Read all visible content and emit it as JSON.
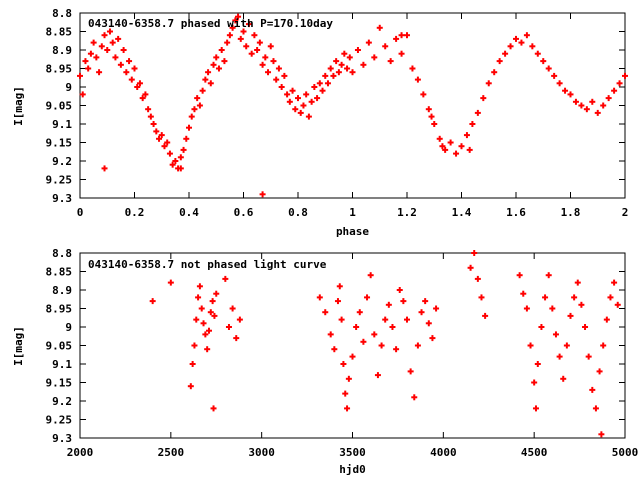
{
  "chart_data": [
    {
      "type": "scatter",
      "title": "043140-6358.7 phased with P=170.10day",
      "xlabel": "phase",
      "ylabel": "I[mag]",
      "xlim": [
        0,
        2
      ],
      "ylim": [
        8.8,
        9.3
      ],
      "y_inverted": true,
      "grid": false,
      "marker_color": "#ff0000",
      "marker_shape": "cross",
      "x_ticks": [
        "0",
        "0.2",
        "0.4",
        "0.6",
        "0.8",
        "1",
        "1.2",
        "1.4",
        "1.6",
        "1.8",
        "2"
      ],
      "y_ticks": [
        "8.8",
        "8.85",
        "8.9",
        "8.95",
        "9",
        "9.05",
        "9.1",
        "9.15",
        "9.2",
        "9.25",
        "9.3"
      ],
      "series": [
        {
          "points": [
            [
              0.0,
              8.97
            ],
            [
              0.01,
              9.02
            ],
            [
              0.02,
              8.93
            ],
            [
              0.03,
              8.95
            ],
            [
              0.04,
              8.91
            ],
            [
              0.05,
              8.88
            ],
            [
              0.06,
              8.92
            ],
            [
              0.07,
              8.96
            ],
            [
              0.08,
              8.89
            ],
            [
              0.09,
              8.86
            ],
            [
              0.1,
              8.9
            ],
            [
              0.11,
              8.85
            ],
            [
              0.12,
              8.88
            ],
            [
              0.13,
              8.92
            ],
            [
              0.14,
              8.87
            ],
            [
              0.15,
              8.94
            ],
            [
              0.16,
              8.9
            ],
            [
              0.17,
              8.96
            ],
            [
              0.18,
              8.93
            ],
            [
              0.19,
              8.98
            ],
            [
              0.2,
              8.95
            ],
            [
              0.21,
              9.0
            ],
            [
              0.22,
              8.99
            ],
            [
              0.23,
              9.03
            ],
            [
              0.24,
              9.02
            ],
            [
              0.25,
              9.06
            ],
            [
              0.26,
              9.08
            ],
            [
              0.27,
              9.1
            ],
            [
              0.28,
              9.12
            ],
            [
              0.29,
              9.14
            ],
            [
              0.3,
              9.13
            ],
            [
              0.31,
              9.16
            ],
            [
              0.32,
              9.15
            ],
            [
              0.33,
              9.18
            ],
            [
              0.34,
              9.21
            ],
            [
              0.35,
              9.2
            ],
            [
              0.36,
              9.22
            ],
            [
              0.37,
              9.19
            ],
            [
              0.38,
              9.17
            ],
            [
              0.39,
              9.14
            ],
            [
              0.4,
              9.11
            ],
            [
              0.41,
              9.08
            ],
            [
              0.42,
              9.06
            ],
            [
              0.43,
              9.03
            ],
            [
              0.44,
              9.05
            ],
            [
              0.45,
              9.01
            ],
            [
              0.46,
              8.98
            ],
            [
              0.47,
              8.96
            ],
            [
              0.48,
              8.99
            ],
            [
              0.49,
              8.94
            ],
            [
              0.5,
              8.92
            ],
            [
              0.51,
              8.95
            ],
            [
              0.52,
              8.9
            ],
            [
              0.53,
              8.93
            ],
            [
              0.54,
              8.88
            ],
            [
              0.55,
              8.86
            ],
            [
              0.56,
              8.84
            ],
            [
              0.57,
              8.82
            ],
            [
              0.58,
              8.81
            ],
            [
              0.59,
              8.87
            ],
            [
              0.6,
              8.85
            ],
            [
              0.61,
              8.89
            ],
            [
              0.62,
              8.83
            ],
            [
              0.63,
              8.91
            ],
            [
              0.64,
              8.86
            ],
            [
              0.65,
              8.9
            ],
            [
              0.66,
              8.88
            ],
            [
              0.67,
              8.94
            ],
            [
              0.68,
              8.92
            ],
            [
              0.69,
              8.96
            ],
            [
              0.7,
              8.89
            ],
            [
              0.71,
              8.93
            ],
            [
              0.72,
              8.98
            ],
            [
              0.73,
              8.95
            ],
            [
              0.74,
              9.0
            ],
            [
              0.75,
              8.97
            ],
            [
              0.76,
              9.02
            ],
            [
              0.77,
              9.04
            ],
            [
              0.78,
              9.01
            ],
            [
              0.79,
              9.06
            ],
            [
              0.8,
              9.03
            ],
            [
              0.81,
              9.07
            ],
            [
              0.82,
              9.05
            ],
            [
              0.83,
              9.02
            ],
            [
              0.84,
              9.08
            ],
            [
              0.85,
              9.04
            ],
            [
              0.86,
              9.0
            ],
            [
              0.87,
              9.03
            ],
            [
              0.88,
              8.99
            ],
            [
              0.89,
              9.01
            ],
            [
              0.9,
              8.97
            ],
            [
              0.91,
              8.99
            ],
            [
              0.92,
              8.95
            ],
            [
              0.93,
              8.97
            ],
            [
              0.94,
              8.93
            ],
            [
              0.95,
              8.96
            ],
            [
              0.96,
              8.94
            ],
            [
              0.97,
              8.91
            ],
            [
              0.98,
              8.95
            ],
            [
              0.99,
              8.92
            ],
            [
              1.0,
              8.96
            ],
            [
              1.02,
              8.9
            ],
            [
              1.04,
              8.94
            ],
            [
              1.06,
              8.88
            ],
            [
              1.08,
              8.92
            ],
            [
              1.1,
              8.84
            ],
            [
              1.12,
              8.89
            ],
            [
              1.14,
              8.93
            ],
            [
              1.16,
              8.87
            ],
            [
              1.18,
              8.91
            ],
            [
              1.2,
              8.86
            ],
            [
              1.22,
              8.95
            ],
            [
              1.24,
              8.98
            ],
            [
              1.26,
              9.02
            ],
            [
              1.28,
              9.06
            ],
            [
              1.3,
              9.1
            ],
            [
              1.32,
              9.14
            ],
            [
              1.34,
              9.17
            ],
            [
              1.36,
              9.15
            ],
            [
              1.38,
              9.18
            ],
            [
              1.4,
              9.16
            ],
            [
              1.42,
              9.13
            ],
            [
              1.44,
              9.1
            ],
            [
              1.46,
              9.07
            ],
            [
              1.48,
              9.03
            ],
            [
              1.5,
              8.99
            ],
            [
              1.52,
              8.96
            ],
            [
              1.54,
              8.93
            ],
            [
              1.56,
              8.91
            ],
            [
              1.58,
              8.89
            ],
            [
              1.6,
              8.87
            ],
            [
              1.62,
              8.88
            ],
            [
              1.64,
              8.86
            ],
            [
              1.66,
              8.89
            ],
            [
              1.68,
              8.91
            ],
            [
              1.7,
              8.93
            ],
            [
              1.72,
              8.95
            ],
            [
              1.74,
              8.97
            ],
            [
              1.76,
              8.99
            ],
            [
              1.78,
              9.01
            ],
            [
              1.8,
              9.02
            ],
            [
              1.82,
              9.04
            ],
            [
              1.84,
              9.05
            ],
            [
              1.86,
              9.06
            ],
            [
              1.88,
              9.04
            ],
            [
              1.9,
              9.07
            ],
            [
              1.92,
              9.05
            ],
            [
              1.94,
              9.03
            ],
            [
              1.96,
              9.01
            ],
            [
              1.98,
              8.99
            ],
            [
              2.0,
              8.97
            ],
            [
              0.09,
              9.22
            ],
            [
              0.67,
              9.29
            ],
            [
              0.37,
              9.22
            ],
            [
              1.29,
              9.08
            ],
            [
              1.18,
              8.86
            ],
            [
              1.33,
              9.16
            ],
            [
              1.43,
              9.17
            ]
          ]
        }
      ]
    },
    {
      "type": "scatter",
      "title": "043140-6358.7 not phased light curve",
      "xlabel": "hjd0",
      "ylabel": "I[mag]",
      "xlim": [
        2000,
        5000
      ],
      "ylim": [
        8.8,
        9.3
      ],
      "y_inverted": true,
      "grid": false,
      "marker_color": "#ff0000",
      "marker_shape": "cross",
      "x_ticks": [
        "2000",
        "2500",
        "3000",
        "3500",
        "4000",
        "4500",
        "5000"
      ],
      "y_ticks": [
        "8.8",
        "8.85",
        "8.9",
        "8.95",
        "9",
        "9.05",
        "9.1",
        "9.15",
        "9.2",
        "9.25",
        "9.3"
      ],
      "series": [
        {
          "points": [
            [
              2400,
              8.93
            ],
            [
              2500,
              8.88
            ],
            [
              2610,
              9.16
            ],
            [
              2620,
              9.1
            ],
            [
              2630,
              9.05
            ],
            [
              2640,
              8.98
            ],
            [
              2650,
              8.92
            ],
            [
              2660,
              8.89
            ],
            [
              2670,
              8.95
            ],
            [
              2680,
              8.99
            ],
            [
              2690,
              9.02
            ],
            [
              2700,
              9.06
            ],
            [
              2710,
              9.01
            ],
            [
              2720,
              8.96
            ],
            [
              2730,
              8.93
            ],
            [
              2735,
              9.22
            ],
            [
              2740,
              8.97
            ],
            [
              2750,
              8.91
            ],
            [
              2800,
              8.87
            ],
            [
              2820,
              9.0
            ],
            [
              2840,
              8.95
            ],
            [
              2860,
              9.03
            ],
            [
              2880,
              8.98
            ],
            [
              3320,
              8.92
            ],
            [
              3350,
              8.96
            ],
            [
              3380,
              9.02
            ],
            [
              3400,
              9.06
            ],
            [
              3420,
              8.93
            ],
            [
              3430,
              8.89
            ],
            [
              3440,
              8.98
            ],
            [
              3450,
              9.1
            ],
            [
              3460,
              9.18
            ],
            [
              3470,
              9.22
            ],
            [
              3480,
              9.14
            ],
            [
              3500,
              9.08
            ],
            [
              3520,
              9.0
            ],
            [
              3540,
              8.96
            ],
            [
              3560,
              9.04
            ],
            [
              3580,
              8.92
            ],
            [
              3600,
              8.86
            ],
            [
              3620,
              9.02
            ],
            [
              3640,
              9.13
            ],
            [
              3660,
              9.05
            ],
            [
              3680,
              8.98
            ],
            [
              3700,
              8.94
            ],
            [
              3720,
              9.0
            ],
            [
              3740,
              9.06
            ],
            [
              3760,
              8.9
            ],
            [
              3780,
              8.93
            ],
            [
              3800,
              8.98
            ],
            [
              3820,
              9.12
            ],
            [
              3840,
              9.19
            ],
            [
              3860,
              9.05
            ],
            [
              3880,
              8.96
            ],
            [
              3900,
              8.93
            ],
            [
              3920,
              8.99
            ],
            [
              3940,
              9.03
            ],
            [
              3960,
              8.95
            ],
            [
              4150,
              8.84
            ],
            [
              4170,
              8.8
            ],
            [
              4190,
              8.87
            ],
            [
              4210,
              8.92
            ],
            [
              4230,
              8.97
            ],
            [
              4420,
              8.86
            ],
            [
              4440,
              8.91
            ],
            [
              4460,
              8.95
            ],
            [
              4480,
              9.05
            ],
            [
              4500,
              9.15
            ],
            [
              4510,
              9.22
            ],
            [
              4520,
              9.1
            ],
            [
              4540,
              9.0
            ],
            [
              4560,
              8.92
            ],
            [
              4580,
              8.86
            ],
            [
              4600,
              8.95
            ],
            [
              4620,
              9.02
            ],
            [
              4640,
              9.08
            ],
            [
              4660,
              9.14
            ],
            [
              4680,
              9.05
            ],
            [
              4700,
              8.97
            ],
            [
              4720,
              8.92
            ],
            [
              4740,
              8.88
            ],
            [
              4760,
              8.94
            ],
            [
              4780,
              9.0
            ],
            [
              4800,
              9.08
            ],
            [
              4820,
              9.17
            ],
            [
              4840,
              9.22
            ],
            [
              4860,
              9.12
            ],
            [
              4870,
              9.29
            ],
            [
              4880,
              9.05
            ],
            [
              4900,
              8.98
            ],
            [
              4920,
              8.92
            ],
            [
              4940,
              8.88
            ],
            [
              4960,
              8.94
            ]
          ]
        }
      ]
    }
  ]
}
